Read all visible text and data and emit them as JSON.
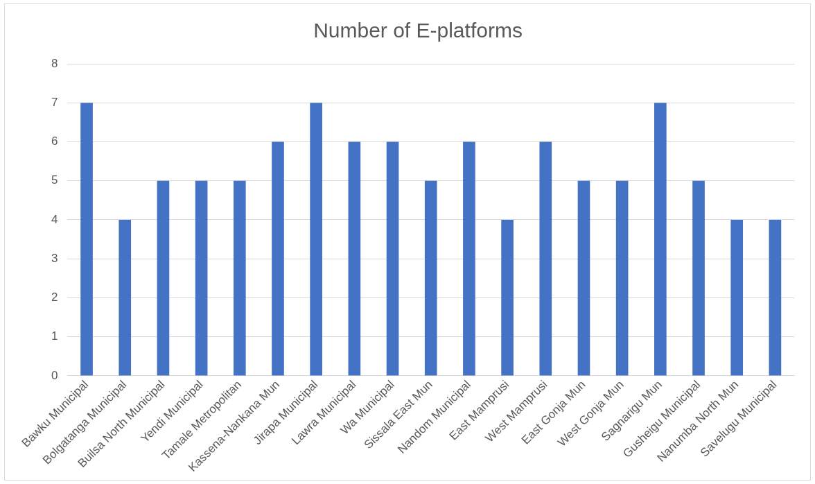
{
  "chart_data": {
    "type": "bar",
    "title": "Number of E-platforms",
    "categories": [
      "Bawku Municipal",
      "Bolgatanga Municipal",
      "Builsa North Municipal",
      "Yendi Municipal",
      "Tamale Metropolitan",
      "Kassena-Nankana Mun",
      "Jirapa Municipal",
      "Lawra Municipal",
      "Wa Municipal",
      "Sissala East Mun",
      "Nandom Municipal",
      "East Mamprusi",
      "West Mamprusi",
      "East Gonja Mun",
      "West Gonja Mun",
      "Sagnarigu Mun",
      "Gusheigu Municipal",
      "Nanumba North Mun",
      "Savelugu Municipal"
    ],
    "values": [
      7,
      4,
      5,
      5,
      5,
      6,
      7,
      6,
      6,
      5,
      6,
      4,
      6,
      5,
      5,
      7,
      5,
      4,
      4
    ],
    "color": "#4472c4",
    "ylim": [
      0,
      8
    ],
    "yticks": [
      0,
      1,
      2,
      3,
      4,
      5,
      6,
      7,
      8
    ],
    "grid": "y",
    "legend": false
  }
}
